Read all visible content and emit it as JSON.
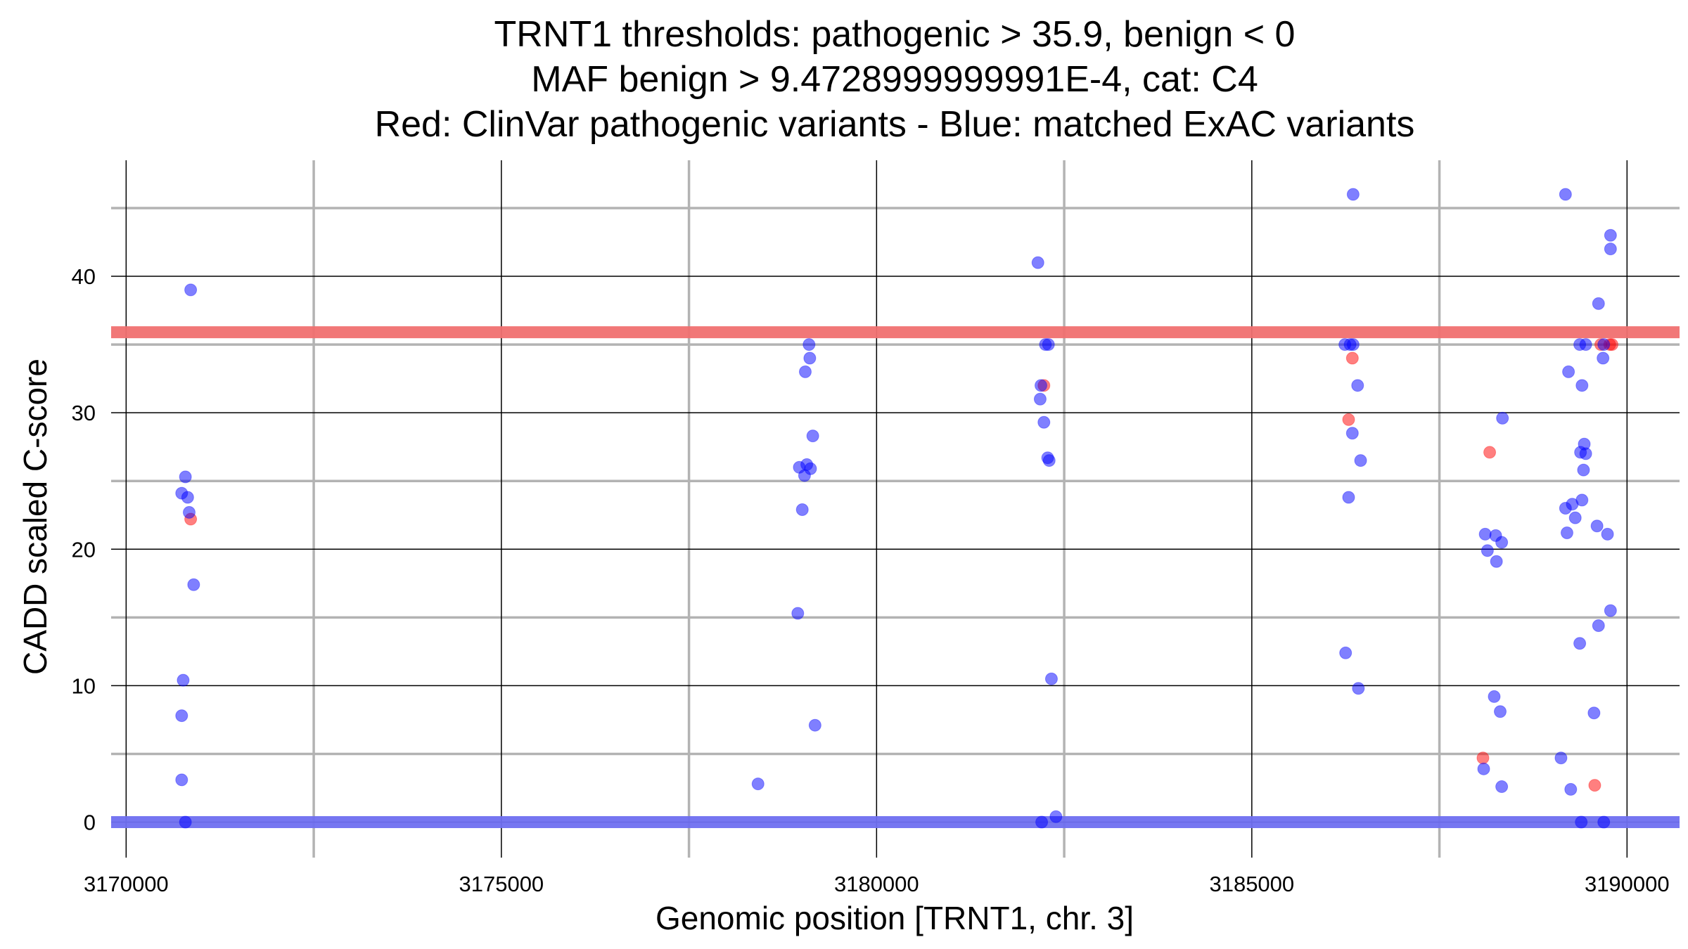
{
  "chart_data": {
    "type": "scatter",
    "title_lines": [
      "TRNT1 thresholds: pathogenic > 35.9, benign < 0",
      "MAF benign > 9.4728999999991E-4, cat: C4",
      "Red: ClinVar pathogenic variants - Blue: matched ExAC variants"
    ],
    "xlabel": "Genomic position [TRNT1, chr. 3]",
    "ylabel": "CADD scaled C-score",
    "x_ticks": [
      3170000,
      3175000,
      3180000,
      3185000,
      3190000
    ],
    "x_tick_labels": [
      "3170000",
      "3175000",
      "3180000",
      "3185000",
      "3190000"
    ],
    "y_ticks": [
      0,
      10,
      20,
      30,
      40
    ],
    "y_tick_labels": [
      "0",
      "10",
      "20",
      "30",
      "40"
    ],
    "xlim": [
      3169800,
      3190700
    ],
    "ylim": [
      -2.6,
      48.5
    ],
    "grid": true,
    "thresholds": [
      {
        "name": "pathogenic",
        "value": 35.9,
        "color": "#f07070"
      },
      {
        "name": "benign",
        "value": 0,
        "color": "#6f6ff0"
      }
    ],
    "colors": {
      "pathogenic": "#ff0000",
      "benign": "#0000ff",
      "major_grid": "#000000",
      "minor_grid": "#b3b3b3"
    },
    "series": [
      {
        "color": "#ff0000",
        "points": [
          [
            3170860,
            22.2
          ],
          [
            3182230,
            32.0
          ],
          [
            3186340,
            34.0
          ],
          [
            3186290,
            29.5
          ],
          [
            3188170,
            27.1
          ],
          [
            3188080,
            4.7
          ],
          [
            3189650,
            35.0
          ],
          [
            3189800,
            35.0
          ],
          [
            3189770,
            35.0
          ],
          [
            3189570,
            2.7
          ]
        ]
      },
      {
        "color": "#0000ff",
        "points": [
          [
            3170860,
            39.0
          ],
          [
            3170790,
            25.3
          ],
          [
            3170740,
            24.1
          ],
          [
            3170820,
            23.8
          ],
          [
            3170840,
            22.7
          ],
          [
            3170900,
            17.4
          ],
          [
            3170760,
            10.4
          ],
          [
            3170740,
            7.8
          ],
          [
            3170740,
            3.1
          ],
          [
            3170790,
            0.0
          ],
          [
            3179100,
            35.0
          ],
          [
            3179110,
            34.0
          ],
          [
            3179050,
            33.0
          ],
          [
            3179150,
            28.3
          ],
          [
            3178970,
            26.0
          ],
          [
            3179070,
            26.2
          ],
          [
            3179120,
            25.9
          ],
          [
            3179040,
            25.4
          ],
          [
            3179010,
            22.9
          ],
          [
            3178950,
            15.3
          ],
          [
            3179180,
            7.1
          ],
          [
            3178420,
            2.8
          ],
          [
            3182150,
            41.0
          ],
          [
            3182250,
            35.0
          ],
          [
            3182290,
            35.0
          ],
          [
            3182190,
            32.0
          ],
          [
            3182180,
            31.0
          ],
          [
            3182230,
            29.3
          ],
          [
            3182280,
            26.7
          ],
          [
            3182300,
            26.5
          ],
          [
            3182330,
            10.5
          ],
          [
            3182390,
            0.4
          ],
          [
            3182200,
            0.0
          ],
          [
            3186350,
            46.0
          ],
          [
            3186240,
            35.0
          ],
          [
            3186310,
            35.0
          ],
          [
            3186350,
            35.0
          ],
          [
            3186410,
            32.0
          ],
          [
            3186340,
            28.5
          ],
          [
            3186450,
            26.5
          ],
          [
            3186290,
            23.8
          ],
          [
            3186250,
            12.4
          ],
          [
            3186420,
            9.8
          ],
          [
            3188340,
            29.6
          ],
          [
            3188110,
            21.1
          ],
          [
            3188250,
            21.0
          ],
          [
            3188330,
            20.5
          ],
          [
            3188140,
            19.9
          ],
          [
            3188260,
            19.1
          ],
          [
            3188230,
            9.2
          ],
          [
            3188310,
            8.1
          ],
          [
            3188090,
            3.9
          ],
          [
            3188330,
            2.6
          ],
          [
            3189180,
            46.0
          ],
          [
            3189780,
            43.0
          ],
          [
            3189780,
            42.0
          ],
          [
            3189620,
            38.0
          ],
          [
            3189370,
            35.0
          ],
          [
            3189450,
            35.0
          ],
          [
            3189690,
            35.0
          ],
          [
            3189680,
            34.0
          ],
          [
            3189220,
            33.0
          ],
          [
            3189400,
            32.0
          ],
          [
            3189430,
            27.7
          ],
          [
            3189380,
            27.1
          ],
          [
            3189450,
            27.0
          ],
          [
            3189420,
            25.8
          ],
          [
            3189400,
            23.6
          ],
          [
            3189270,
            23.3
          ],
          [
            3189180,
            23.0
          ],
          [
            3189310,
            22.3
          ],
          [
            3189200,
            21.2
          ],
          [
            3189600,
            21.7
          ],
          [
            3189740,
            21.1
          ],
          [
            3189780,
            15.5
          ],
          [
            3189620,
            14.4
          ],
          [
            3189370,
            13.1
          ],
          [
            3189560,
            8.0
          ],
          [
            3189120,
            4.7
          ],
          [
            3189250,
            2.4
          ],
          [
            3189390,
            0.0
          ],
          [
            3189690,
            0.0
          ]
        ]
      }
    ]
  }
}
